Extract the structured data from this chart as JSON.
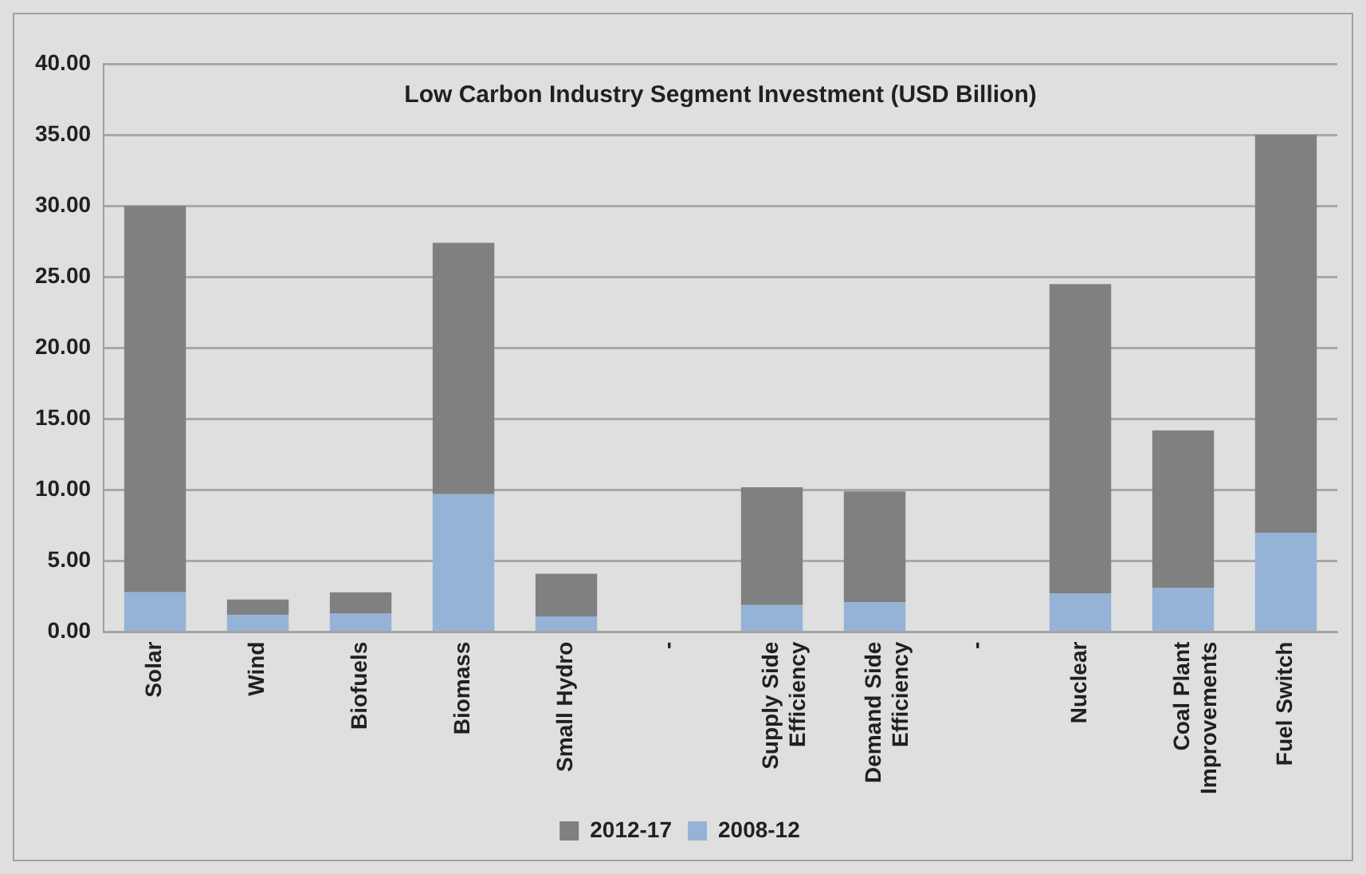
{
  "chart_data": {
    "type": "bar",
    "title": "Low Carbon Industry Segment Investment (USD Billion)",
    "categories": [
      "Solar",
      "Wind",
      "Biofuels",
      "Biomass",
      "Small Hydro",
      "-",
      "Supply Side Efficiency",
      "Demand Side Efficiency",
      "-",
      "Nuclear",
      "Coal Plant Improvements",
      "Fuel Switch"
    ],
    "series": [
      {
        "name": "2008-12",
        "color": "#95b3d7",
        "values": [
          2.8,
          1.2,
          1.3,
          9.7,
          1.1,
          null,
          1.9,
          2.1,
          null,
          2.7,
          3.1,
          7.0
        ]
      },
      {
        "name": "2012-17",
        "color": "#808080",
        "values": [
          27.2,
          1.1,
          1.5,
          17.7,
          3.0,
          null,
          8.3,
          7.8,
          null,
          21.8,
          11.1,
          28.0
        ]
      }
    ],
    "stacked": true,
    "ylim": [
      0,
      40
    ],
    "yticks": [
      {
        "value": 0,
        "label": "0.00"
      },
      {
        "value": 5,
        "label": "5.00"
      },
      {
        "value": 10,
        "label": "10.00"
      },
      {
        "value": 15,
        "label": "15.00"
      },
      {
        "value": 20,
        "label": "20.00"
      },
      {
        "value": 25,
        "label": "25.00"
      },
      {
        "value": 30,
        "label": "30.00"
      },
      {
        "value": 35,
        "label": "35.00"
      },
      {
        "value": 40,
        "label": "40.00"
      }
    ],
    "grid": "y",
    "legend": "bottom"
  }
}
